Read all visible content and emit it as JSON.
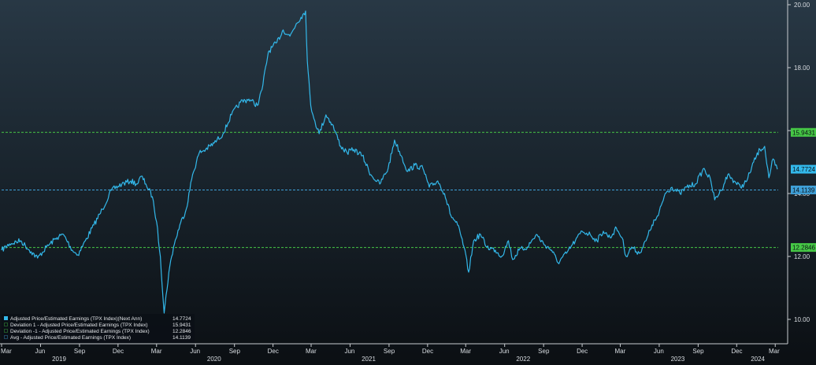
{
  "chart_data": {
    "type": "line",
    "y_axis": {
      "side": "right",
      "range": [
        9.5,
        20.1
      ],
      "ticks": [
        10.0,
        12.0,
        14.0,
        16.0,
        18.0,
        20.0
      ],
      "tick_labels": [
        "10.00",
        "12.00",
        "14.00",
        "16.00",
        "18.00",
        "20.00"
      ]
    },
    "x_axis": {
      "range": [
        "2019-03-01",
        "2024-03-08"
      ],
      "month_ticks": [
        {
          "date": "2019-03-01",
          "label": "Mar"
        },
        {
          "date": "2019-06-01",
          "label": "Jun"
        },
        {
          "date": "2019-09-01",
          "label": "Sep"
        },
        {
          "date": "2019-12-01",
          "label": "Dec"
        },
        {
          "date": "2020-03-01",
          "label": "Mar"
        },
        {
          "date": "2020-06-01",
          "label": "Jun"
        },
        {
          "date": "2020-09-01",
          "label": "Sep"
        },
        {
          "date": "2020-12-01",
          "label": "Dec"
        },
        {
          "date": "2021-03-01",
          "label": "Mar"
        },
        {
          "date": "2021-06-01",
          "label": "Jun"
        },
        {
          "date": "2021-09-01",
          "label": "Sep"
        },
        {
          "date": "2021-12-01",
          "label": "Dec"
        },
        {
          "date": "2022-03-01",
          "label": "Mar"
        },
        {
          "date": "2022-06-01",
          "label": "Jun"
        },
        {
          "date": "2022-09-01",
          "label": "Sep"
        },
        {
          "date": "2022-12-01",
          "label": "Dec"
        },
        {
          "date": "2023-03-01",
          "label": "Mar"
        },
        {
          "date": "2023-06-01",
          "label": "Jun"
        },
        {
          "date": "2023-09-01",
          "label": "Sep"
        },
        {
          "date": "2023-12-01",
          "label": "Dec"
        },
        {
          "date": "2024-03-01",
          "label": "Mar"
        }
      ],
      "year_labels": [
        {
          "date": "2019-07-15",
          "label": "2019"
        },
        {
          "date": "2020-07-15",
          "label": "2020"
        },
        {
          "date": "2021-07-15",
          "label": "2021"
        },
        {
          "date": "2022-07-15",
          "label": "2022"
        },
        {
          "date": "2023-07-15",
          "label": "2023"
        },
        {
          "date": "2024-01-20",
          "label": "2024"
        }
      ]
    },
    "series": [
      {
        "name": "Adjusted Price/Estimated Earnings (TPX Index)(Next Ann)",
        "color": "#33b8ea",
        "last_value": "14.7724",
        "points": [
          [
            "2019-03-01",
            12.2
          ],
          [
            "2019-03-20",
            12.4
          ],
          [
            "2019-04-15",
            12.5
          ],
          [
            "2019-05-10",
            12.15
          ],
          [
            "2019-05-25",
            11.95
          ],
          [
            "2019-06-15",
            12.3
          ],
          [
            "2019-07-10",
            12.6
          ],
          [
            "2019-07-25",
            12.7
          ],
          [
            "2019-08-15",
            12.2
          ],
          [
            "2019-08-28",
            12.05
          ],
          [
            "2019-09-15",
            12.5
          ],
          [
            "2019-10-05",
            13.0
          ],
          [
            "2019-10-25",
            13.5
          ],
          [
            "2019-11-15",
            14.1
          ],
          [
            "2019-12-10",
            14.3
          ],
          [
            "2019-12-31",
            14.4
          ],
          [
            "2020-01-15",
            14.3
          ],
          [
            "2020-01-25",
            14.55
          ],
          [
            "2020-02-05",
            14.3
          ],
          [
            "2020-02-20",
            13.9
          ],
          [
            "2020-03-01",
            13.1
          ],
          [
            "2020-03-10",
            12.0
          ],
          [
            "2020-03-19",
            10.2
          ],
          [
            "2020-03-30",
            11.5
          ],
          [
            "2020-04-10",
            12.3
          ],
          [
            "2020-04-25",
            13.0
          ],
          [
            "2020-05-10",
            13.5
          ],
          [
            "2020-05-25",
            14.6
          ],
          [
            "2020-06-10",
            15.3
          ],
          [
            "2020-06-25",
            15.4
          ],
          [
            "2020-07-15",
            15.6
          ],
          [
            "2020-08-05",
            15.9
          ],
          [
            "2020-08-25",
            16.5
          ],
          [
            "2020-09-15",
            16.9
          ],
          [
            "2020-10-05",
            17.0
          ],
          [
            "2020-10-25",
            16.8
          ],
          [
            "2020-11-05",
            17.3
          ],
          [
            "2020-11-20",
            18.5
          ],
          [
            "2020-12-10",
            18.8
          ],
          [
            "2020-12-25",
            19.2
          ],
          [
            "2021-01-10",
            19.0
          ],
          [
            "2021-01-25",
            19.4
          ],
          [
            "2021-02-05",
            19.6
          ],
          [
            "2021-02-16",
            19.8
          ],
          [
            "2021-02-20",
            18.2
          ],
          [
            "2021-02-28",
            16.8
          ],
          [
            "2021-03-10",
            16.3
          ],
          [
            "2021-03-20",
            15.9
          ],
          [
            "2021-04-05",
            16.5
          ],
          [
            "2021-04-20",
            16.2
          ],
          [
            "2021-05-10",
            15.5
          ],
          [
            "2021-05-25",
            15.3
          ],
          [
            "2021-06-10",
            15.4
          ],
          [
            "2021-06-30",
            15.2
          ],
          [
            "2021-07-20",
            14.6
          ],
          [
            "2021-08-10",
            14.3
          ],
          [
            "2021-08-30",
            14.8
          ],
          [
            "2021-09-14",
            15.7
          ],
          [
            "2021-09-30",
            15.2
          ],
          [
            "2021-10-15",
            14.7
          ],
          [
            "2021-11-01",
            14.9
          ],
          [
            "2021-11-20",
            14.8
          ],
          [
            "2021-12-05",
            14.2
          ],
          [
            "2021-12-25",
            14.4
          ],
          [
            "2022-01-10",
            14.0
          ],
          [
            "2022-01-25",
            13.3
          ],
          [
            "2022-02-10",
            13.0
          ],
          [
            "2022-02-25",
            12.3
          ],
          [
            "2022-03-08",
            11.5
          ],
          [
            "2022-03-20",
            12.5
          ],
          [
            "2022-04-05",
            12.7
          ],
          [
            "2022-04-20",
            12.3
          ],
          [
            "2022-05-10",
            12.2
          ],
          [
            "2022-05-25",
            12.0
          ],
          [
            "2022-06-10",
            12.5
          ],
          [
            "2022-06-20",
            11.9
          ],
          [
            "2022-07-05",
            12.2
          ],
          [
            "2022-07-25",
            12.3
          ],
          [
            "2022-08-15",
            12.7
          ],
          [
            "2022-09-01",
            12.4
          ],
          [
            "2022-09-20",
            12.2
          ],
          [
            "2022-10-05",
            11.8
          ],
          [
            "2022-10-25",
            12.1
          ],
          [
            "2022-11-15",
            12.5
          ],
          [
            "2022-12-01",
            12.8
          ],
          [
            "2022-12-20",
            12.7
          ],
          [
            "2023-01-05",
            12.5
          ],
          [
            "2023-01-20",
            12.8
          ],
          [
            "2023-02-05",
            12.6
          ],
          [
            "2023-02-20",
            12.9
          ],
          [
            "2023-03-05",
            12.6
          ],
          [
            "2023-03-15",
            12.0
          ],
          [
            "2023-03-28",
            12.3
          ],
          [
            "2023-04-15",
            12.1
          ],
          [
            "2023-05-01",
            12.5
          ],
          [
            "2023-05-15",
            13.0
          ],
          [
            "2023-05-30",
            13.3
          ],
          [
            "2023-06-15",
            14.0
          ],
          [
            "2023-07-01",
            14.2
          ],
          [
            "2023-07-20",
            14.0
          ],
          [
            "2023-08-05",
            14.2
          ],
          [
            "2023-08-25",
            14.3
          ],
          [
            "2023-09-15",
            14.8
          ],
          [
            "2023-10-01",
            14.4
          ],
          [
            "2023-10-10",
            13.8
          ],
          [
            "2023-10-25",
            14.1
          ],
          [
            "2023-11-10",
            14.6
          ],
          [
            "2023-11-25",
            14.4
          ],
          [
            "2023-12-10",
            14.2
          ],
          [
            "2023-12-25",
            14.4
          ],
          [
            "2024-01-10",
            15.0
          ],
          [
            "2024-01-25",
            15.4
          ],
          [
            "2024-02-05",
            15.5
          ],
          [
            "2024-02-15",
            14.5
          ],
          [
            "2024-02-25",
            15.1
          ],
          [
            "2024-03-01",
            14.9
          ],
          [
            "2024-03-06",
            14.77
          ]
        ]
      },
      {
        "name": "Deviation 1 - Adjusted Price/Estimated Earnings (TPX Index)",
        "color": "#46c846",
        "last_value": "15.9431",
        "constant": 15.9431
      },
      {
        "name": "Deviation  -1 - Adjusted Price/Estimated Earnings (TPX Index)",
        "color": "#46c846",
        "last_value": "12.2846",
        "constant": 12.2846
      },
      {
        "name": "Avg - Adjusted Price/Estimated Earnings (TPX Index)",
        "color": "#3fa0d8",
        "last_value": "14.1139",
        "constant": 14.1139
      }
    ],
    "value_tags": [
      {
        "label": "15.9431",
        "value": 15.9431,
        "color": "#46c846"
      },
      {
        "label": "14.7724",
        "value": 14.7724,
        "color": "#33b8ea"
      },
      {
        "label": "14.1139",
        "value": 14.1139,
        "color": "#3fa0d8"
      },
      {
        "label": "12.2846",
        "value": 12.2846,
        "color": "#46c846"
      }
    ],
    "legend_position": "bottom-left",
    "grid": false
  }
}
